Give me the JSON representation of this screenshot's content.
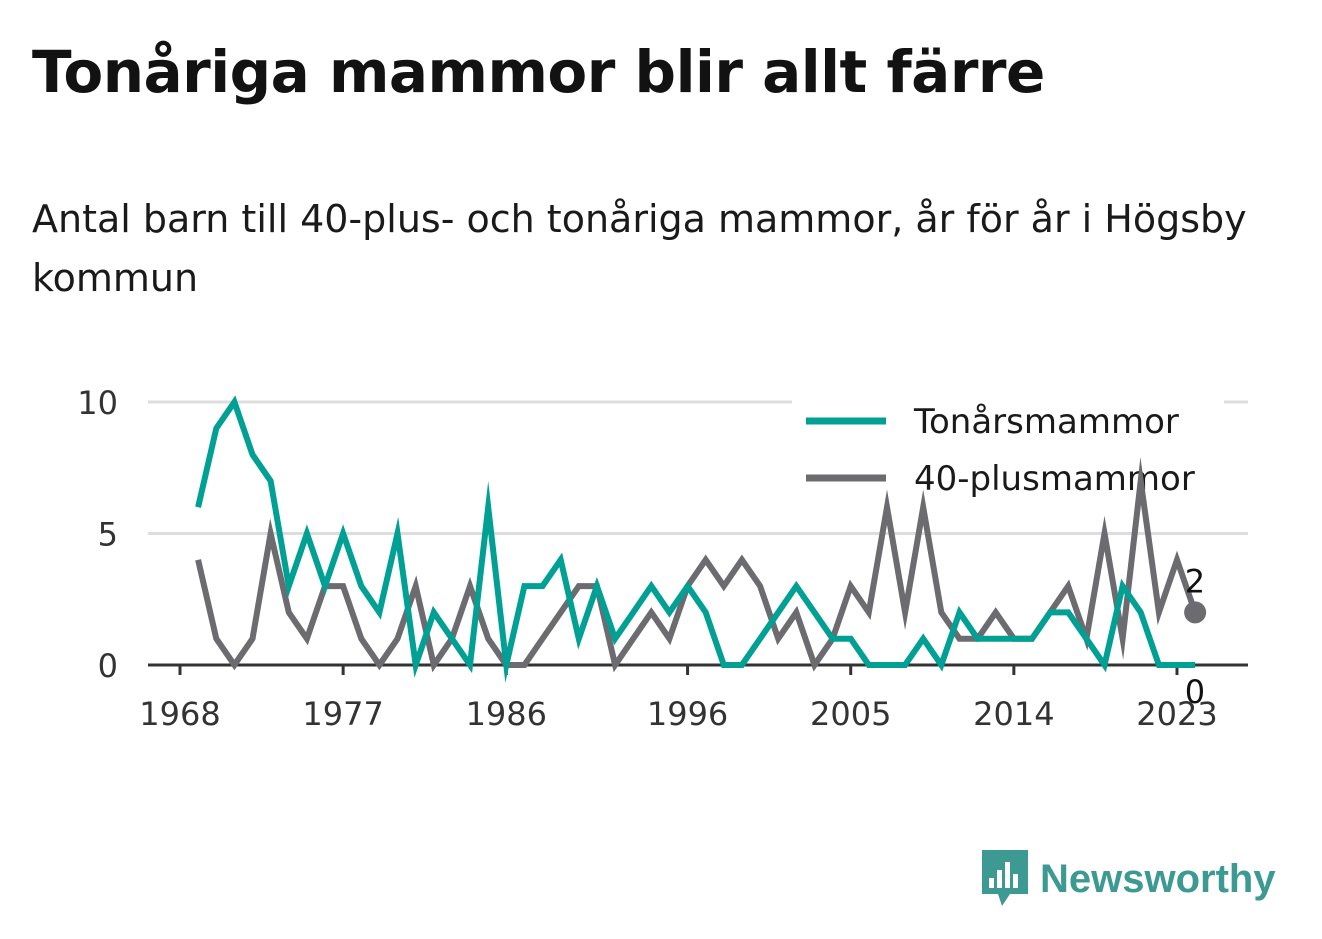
{
  "title": "Tonåriga mammor blir allt färre",
  "subtitle": "Antal barn till 40-plus- och tonåriga mammor, år för år i Högsby kommun",
  "brand": {
    "name": "Newsworthy",
    "logo_icon": "bar-chart-speech-bubble-icon"
  },
  "colors": {
    "teen": "#00a095",
    "plus40": "#6b6b70",
    "grid": "#dddddd",
    "axis": "#333333",
    "brand": "#3d9a93"
  },
  "chart_data": {
    "type": "line",
    "x": [
      1969,
      1970,
      1971,
      1972,
      1973,
      1974,
      1975,
      1976,
      1977,
      1978,
      1979,
      1980,
      1981,
      1982,
      1983,
      1984,
      1985,
      1986,
      1987,
      1988,
      1989,
      1990,
      1991,
      1992,
      1993,
      1994,
      1995,
      1996,
      1997,
      1998,
      1999,
      2000,
      2001,
      2002,
      2003,
      2004,
      2005,
      2006,
      2007,
      2008,
      2009,
      2010,
      2011,
      2012,
      2013,
      2014,
      2015,
      2016,
      2017,
      2018,
      2019,
      2020,
      2021,
      2022,
      2023,
      2024
    ],
    "series": [
      {
        "name": "Tonårsmammor",
        "color": "#00a095",
        "values": [
          6,
          9,
          10,
          8,
          7,
          3,
          5,
          3,
          5,
          3,
          2,
          5,
          0,
          2,
          1,
          0,
          6,
          0,
          3,
          3,
          4,
          1,
          3,
          1,
          2,
          3,
          2,
          3,
          2,
          0,
          0,
          1,
          2,
          3,
          2,
          1,
          1,
          0,
          0,
          0,
          1,
          0,
          2,
          1,
          1,
          1,
          1,
          2,
          2,
          1,
          0,
          3,
          2,
          0,
          0,
          0
        ]
      },
      {
        "name": "40-plusmammor",
        "color": "#6b6b70",
        "values": [
          4,
          1,
          0,
          1,
          5,
          2,
          1,
          3,
          3,
          1,
          0,
          1,
          3,
          0,
          1,
          3,
          1,
          0,
          0,
          1,
          2,
          3,
          3,
          0,
          1,
          2,
          1,
          3,
          4,
          3,
          4,
          3,
          1,
          2,
          0,
          1,
          3,
          2,
          6,
          2,
          6,
          2,
          1,
          1,
          2,
          1,
          1,
          2,
          3,
          1,
          5,
          1,
          7,
          2,
          4,
          2
        ]
      }
    ],
    "x_ticks": [
      1968,
      1977,
      1986,
      1996,
      2005,
      2014,
      2023
    ],
    "y_ticks": [
      0,
      5,
      10
    ],
    "xlim": [
      1968,
      2025
    ],
    "ylim": [
      0,
      10
    ],
    "grid": true,
    "legend_position": "top-right",
    "end_labels": {
      "plus40": "2",
      "teen": "0"
    }
  }
}
